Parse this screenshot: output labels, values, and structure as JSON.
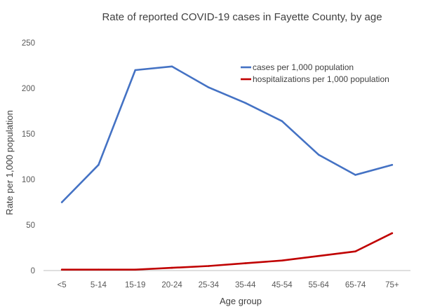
{
  "chart_data": {
    "type": "line",
    "title": "Rate of reported COVID-19 cases in Fayette County, by age",
    "xlabel": "Age group",
    "ylabel": "Rate per 1,000 population",
    "categories": [
      "<5",
      "5-14",
      "15-19",
      "20-24",
      "25-34",
      "35-44",
      "45-54",
      "55-64",
      "65-74",
      "75+"
    ],
    "ylim": [
      0,
      250
    ],
    "yticks": [
      "0",
      "50",
      "100",
      "150",
      "200",
      "250"
    ],
    "grid": false,
    "legend_position": "top-right",
    "series": [
      {
        "name": "cases per 1,000 population",
        "color": "#4472c4",
        "values": [
          75,
          116,
          220,
          224,
          201,
          184,
          164,
          127,
          105,
          116
        ]
      },
      {
        "name": "hospitalizations per 1,000 population",
        "color": "#c00000",
        "values": [
          1,
          1,
          1,
          3,
          5,
          8,
          11,
          16,
          21,
          41
        ]
      }
    ]
  }
}
